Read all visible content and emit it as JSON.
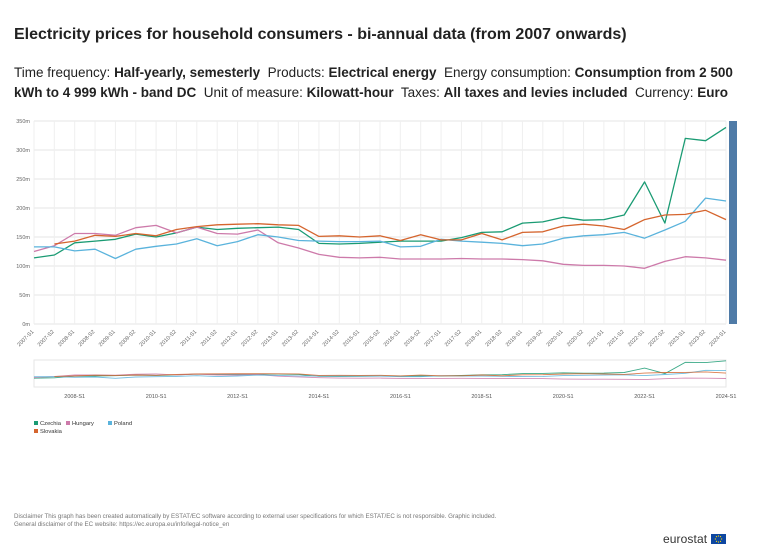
{
  "header": {
    "title": "Electricity prices for household consumers - bi-annual data (from 2007 onwards)",
    "filters": [
      {
        "label": "Time frequency:",
        "value": "Half-yearly, semesterly"
      },
      {
        "label": "Products:",
        "value": "Electrical energy"
      },
      {
        "label": "Energy consumption:",
        "value": "Consumption from 2 500 kWh to 4 999 kWh - band DC"
      },
      {
        "label": "Unit of measure:",
        "value": "Kilowatt-hour"
      },
      {
        "label": "Taxes:",
        "value": "All taxes and levies included"
      },
      {
        "label": "Currency:",
        "value": "Euro"
      }
    ]
  },
  "chart_data": {
    "type": "line",
    "title": "",
    "xlabel": "",
    "ylabel": "",
    "ylim": [
      0,
      350
    ],
    "yticks": [
      0,
      50,
      100,
      150,
      200,
      250,
      300,
      350
    ],
    "ytick_labels": [
      "0m",
      "50m",
      "100m",
      "150m",
      "200m",
      "250m",
      "300m",
      "350m"
    ],
    "x": [
      "2007-S1",
      "2007-S2",
      "2008-S1",
      "2008-S2",
      "2009-S1",
      "2009-S2",
      "2010-S1",
      "2010-S2",
      "2011-S1",
      "2011-S2",
      "2012-S1",
      "2012-S2",
      "2013-S1",
      "2013-S2",
      "2014-S1",
      "2014-S2",
      "2015-S1",
      "2015-S2",
      "2016-S1",
      "2016-S2",
      "2017-S1",
      "2017-S2",
      "2018-S1",
      "2018-S2",
      "2019-S1",
      "2019-S2",
      "2020-S1",
      "2020-S2",
      "2021-S1",
      "2021-S2",
      "2022-S1",
      "2022-S2",
      "2023-S1",
      "2023-S2",
      "2024-S1"
    ],
    "series": [
      {
        "name": "Czechia",
        "color": "#1a9b73",
        "values": [
          114,
          119,
          140,
          143,
          146,
          155,
          150,
          157,
          167,
          163,
          165,
          166,
          167,
          163,
          139,
          138,
          139,
          141,
          143,
          143,
          143,
          149,
          158,
          159,
          174,
          176,
          184,
          179,
          180,
          188,
          245,
          174,
          320,
          316,
          339
        ]
      },
      {
        "name": "Hungary",
        "color": "#cd7aaa",
        "values": [
          125,
          135,
          156,
          156,
          153,
          166,
          170,
          157,
          167,
          156,
          155,
          162,
          140,
          131,
          120,
          115,
          114,
          115,
          112,
          112,
          112,
          113,
          112,
          112,
          111,
          109,
          103,
          101,
          101,
          100,
          96,
          108,
          116,
          114,
          110
        ]
      },
      {
        "name": "Poland",
        "color": "#5ab3dc",
        "values": [
          133,
          133,
          126,
          129,
          113,
          129,
          134,
          138,
          147,
          135,
          142,
          154,
          150,
          144,
          143,
          142,
          142,
          143,
          133,
          134,
          146,
          143,
          141,
          139,
          135,
          138,
          148,
          152,
          154,
          158,
          148,
          162,
          177,
          217,
          212
        ]
      },
      {
        "name": "Slovakia",
        "color": "#d5652e",
        "values": [
          null,
          138,
          143,
          153,
          151,
          156,
          152,
          163,
          168,
          171,
          172,
          173,
          171,
          170,
          151,
          152,
          150,
          152,
          144,
          154,
          145,
          145,
          156,
          145,
          158,
          159,
          169,
          172,
          169,
          163,
          180,
          188,
          189,
          196,
          180
        ]
      }
    ],
    "navigator_labels": [
      "2008-S1",
      "2010-S1",
      "2012-S1",
      "2014-S1",
      "2016-S1",
      "2018-S1",
      "2020-S1",
      "2022-S1",
      "2024-S1"
    ],
    "legend": {
      "placement": "bottom-left",
      "items": [
        "Czechia",
        "Hungary",
        "Poland",
        "Slovakia"
      ]
    },
    "grid": true,
    "highlight_bar_color": "#4f7ba7"
  },
  "footer": {
    "disclaimer_line1": "Disclaimer This graph has been created automatically by ESTAT/EC software according to external user specifications for which ESTAT/EC is not responsible. Graphic included.",
    "disclaimer_line2": "General disclaimer of the EC website: https://ec.europa.eu/info/legal-notice_en",
    "logo_text": "eurostat"
  }
}
